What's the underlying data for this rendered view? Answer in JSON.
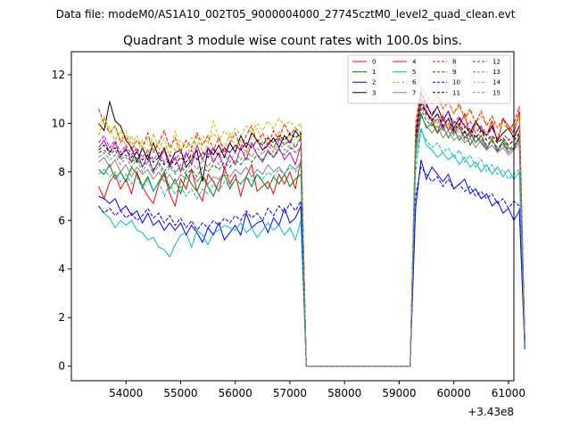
{
  "chart_data": {
    "type": "line",
    "suptitle": "Data file: modeM0/AS1A10_002T05_9000004000_27745cztM0_level2_quad_clean.evt",
    "title": "Quadrant 3 module wise count rates with 100.0s bins.",
    "xlabel": "",
    "ylabel": "",
    "x_offset_label": "+3.43e8",
    "xlim": [
      53000,
      61100
    ],
    "ylim": [
      -0.6,
      12.95
    ],
    "x_ticks": [
      54000,
      55000,
      56000,
      57000,
      58000,
      59000,
      60000,
      61000
    ],
    "x_tick_labels": [
      "54000",
      "55000",
      "56000",
      "57000",
      "58000",
      "59000",
      "60000",
      "61000"
    ],
    "y_ticks": [
      0,
      2,
      4,
      6,
      8,
      10,
      12
    ],
    "y_tick_labels": [
      "0",
      "2",
      "4",
      "6",
      "8",
      "10",
      "12"
    ],
    "x_start": 53500,
    "x_step": 100,
    "gap_segment": {
      "x": [
        57300,
        59200
      ],
      "values": [
        0,
        0
      ]
    },
    "legend_position": "top-right",
    "series": [
      {
        "name": "0",
        "color": "#ff0000",
        "dashed": false,
        "values": [
          7.4,
          6.9,
          7.6,
          7.9,
          7.3,
          7.7,
          7.1,
          8.0,
          7.4,
          7.0,
          6.7,
          7.5,
          7.9,
          7.1,
          6.6,
          7.7,
          7.3,
          8.1,
          7.2,
          6.8,
          7.9,
          7.6,
          7.2,
          8.2,
          7.5,
          7.9,
          7.0,
          7.8,
          8.3,
          7.2,
          7.4,
          7.6,
          7.1,
          7.9,
          7.5,
          8.0,
          7.3,
          8.5,
          0.0
        ],
        "post_values": [
          9.0,
          11.0,
          10.4,
          10.2,
          9.6,
          10.3,
          9.7,
          10.1,
          9.9,
          10.4,
          9.4,
          10.0,
          9.8,
          9.5,
          10.1,
          9.2,
          10.2,
          9.9,
          9.6,
          10.5,
          1.2
        ]
      },
      {
        "name": "1",
        "color": "#008000",
        "dashed": false,
        "values": [
          8.1,
          7.9,
          8.3,
          7.7,
          8.0,
          7.6,
          8.2,
          7.9,
          7.4,
          7.8,
          7.2,
          7.6,
          8.0,
          7.3,
          7.7,
          7.1,
          7.9,
          7.5,
          7.2,
          7.8,
          7.4,
          7.0,
          7.6,
          7.9,
          7.3,
          7.7,
          7.5,
          7.8,
          7.4,
          7.9,
          7.6,
          7.3,
          7.8,
          7.5,
          7.9,
          7.4,
          7.7,
          7.9,
          0.0
        ],
        "post_values": [
          8.8,
          10.4,
          9.8,
          10.0,
          9.6,
          9.9,
          9.4,
          9.8,
          9.3,
          9.7,
          9.1,
          9.5,
          9.2,
          8.9,
          9.4,
          8.8,
          9.3,
          9.0,
          8.9,
          9.5,
          1.0
        ]
      },
      {
        "name": "2",
        "color": "#0000ff",
        "dashed": false,
        "values": [
          7.0,
          6.9,
          6.7,
          6.9,
          6.4,
          6.6,
          6.2,
          6.4,
          5.9,
          6.3,
          5.8,
          6.0,
          5.6,
          5.9,
          5.6,
          5.9,
          5.4,
          5.8,
          5.5,
          5.1,
          5.7,
          5.4,
          5.9,
          5.2,
          5.5,
          5.8,
          5.4,
          6.3,
          5.7,
          5.9,
          6.0,
          5.5,
          6.1,
          5.8,
          6.5,
          5.9,
          6.1,
          6.6,
          0.0
        ],
        "post_values": [
          6.5,
          8.5,
          7.7,
          8.2,
          7.9,
          7.6,
          7.9,
          7.3,
          7.5,
          7.7,
          7.1,
          7.3,
          6.9,
          7.1,
          6.6,
          6.8,
          6.3,
          6.5,
          6.0,
          6.4,
          0.7
        ]
      },
      {
        "name": "3",
        "color": "#000000",
        "dashed": false,
        "values": [
          10.0,
          9.7,
          10.9,
          10.1,
          9.9,
          9.3,
          9.0,
          8.4,
          9.0,
          8.5,
          9.2,
          8.6,
          9.0,
          8.3,
          8.8,
          8.9,
          8.2,
          8.5,
          8.9,
          7.6,
          9.0,
          8.7,
          9.1,
          8.6,
          9.2,
          8.8,
          9.5,
          9.0,
          9.6,
          9.3,
          8.9,
          9.1,
          9.4,
          9.0,
          9.5,
          9.2,
          9.7,
          9.4,
          0.0
        ],
        "post_values": [
          9.5,
          11.3,
          10.8,
          10.3,
          10.7,
          10.1,
          10.5,
          9.8,
          10.2,
          9.9,
          9.6,
          10.1,
          9.7,
          9.5,
          9.9,
          9.3,
          9.6,
          9.8,
          9.4,
          9.9,
          1.1
        ]
      },
      {
        "name": "4",
        "color": "#bf00bf",
        "dashed": false,
        "values": [
          9.0,
          9.3,
          8.8,
          9.2,
          8.6,
          9.0,
          8.4,
          8.9,
          8.2,
          8.7,
          8.0,
          8.5,
          8.9,
          8.2,
          8.6,
          8.0,
          8.8,
          8.3,
          9.1,
          8.5,
          9.0,
          8.4,
          8.8,
          8.1,
          8.7,
          8.3,
          9.0,
          8.5,
          9.2,
          8.7,
          8.4,
          8.9,
          8.6,
          9.0,
          8.5,
          8.8,
          8.3,
          9.1,
          0.0
        ],
        "post_values": [
          9.2,
          10.9,
          10.5,
          10.1,
          10.4,
          9.8,
          10.2,
          9.6,
          9.9,
          9.4,
          9.7,
          9.2,
          9.5,
          9.0,
          9.3,
          8.9,
          9.2,
          8.8,
          9.0,
          9.4,
          1.0
        ]
      },
      {
        "name": "5",
        "color": "#00bfbf",
        "dashed": false,
        "values": [
          6.6,
          6.3,
          6.1,
          5.7,
          6.0,
          5.8,
          6.0,
          5.6,
          5.5,
          5.2,
          5.3,
          4.9,
          4.8,
          4.5,
          5.0,
          5.4,
          5.5,
          4.9,
          5.6,
          5.4,
          5.0,
          5.5,
          5.6,
          5.8,
          5.7,
          5.6,
          5.9,
          5.5,
          5.7,
          5.3,
          5.6,
          5.9,
          5.6,
          5.8,
          5.4,
          5.7,
          5.2,
          6.0,
          0.0
        ],
        "post_values": [
          8.5,
          9.8,
          9.1,
          8.9,
          8.6,
          8.8,
          8.5,
          8.7,
          8.3,
          8.6,
          8.2,
          8.4,
          8.0,
          8.3,
          7.9,
          8.2,
          7.8,
          8.1,
          7.7,
          8.0,
          0.9
        ]
      },
      {
        "name": "6",
        "color": "#bfbf00",
        "dashed": true,
        "values": [
          9.5,
          10.2,
          9.8,
          9.3,
          9.7,
          9.0,
          9.5,
          8.8,
          9.3,
          8.7,
          9.6,
          8.9,
          9.4,
          8.6,
          9.7,
          8.9,
          9.3,
          8.5,
          9.5,
          8.8,
          9.1,
          10.1,
          9.4,
          8.9,
          9.6,
          9.0,
          9.3,
          8.7,
          9.4,
          9.8,
          9.2,
          9.5,
          8.9,
          9.7,
          9.1,
          9.6,
          9.0,
          9.6,
          0.0
        ],
        "post_values": [
          9.3,
          11.1,
          10.6,
          10.3,
          10.0,
          10.4,
          9.8,
          10.1,
          9.6,
          10.0,
          9.5,
          9.8,
          9.4,
          9.7,
          9.2,
          9.6,
          9.1,
          9.4,
          9.2,
          9.6,
          1.0
        ]
      },
      {
        "name": "7",
        "color": "#808080",
        "dashed": false,
        "values": [
          8.4,
          8.6,
          8.2,
          8.5,
          8.0,
          8.3,
          7.8,
          8.2,
          7.9,
          8.1,
          7.7,
          8.0,
          7.6,
          7.9,
          7.5,
          7.9,
          7.7,
          8.0,
          7.6,
          7.9,
          7.5,
          7.8,
          7.7,
          8.0,
          7.8,
          8.1,
          7.9,
          8.2,
          7.8,
          8.1,
          7.9,
          8.3,
          8.0,
          8.2,
          7.9,
          8.3,
          8.1,
          8.4,
          0.0
        ],
        "post_values": [
          8.8,
          10.3,
          9.9,
          9.6,
          9.9,
          9.4,
          9.7,
          9.3,
          9.5,
          9.2,
          9.4,
          9.0,
          9.3,
          8.9,
          9.1,
          8.8,
          9.0,
          8.7,
          8.9,
          9.2,
          1.0
        ]
      },
      {
        "name": "8",
        "color": "#ff0000",
        "dashed": true,
        "values": [
          10.6,
          10.0,
          9.6,
          9.9,
          9.2,
          9.5,
          8.9,
          9.3,
          9.0,
          9.6,
          8.8,
          9.2,
          9.7,
          9.0,
          9.4,
          8.8,
          9.3,
          9.0,
          9.6,
          9.1,
          9.5,
          8.9,
          9.4,
          8.8,
          9.2,
          9.6,
          9.0,
          9.5,
          9.9,
          9.2,
          9.6,
          9.1,
          9.7,
          9.3,
          10.0,
          9.5,
          9.8,
          9.6,
          0.0
        ],
        "post_values": [
          9.8,
          11.5,
          11.1,
          10.8,
          11.2,
          10.6,
          10.9,
          10.4,
          10.8,
          10.2,
          10.6,
          10.0,
          10.5,
          9.9,
          10.3,
          9.8,
          10.2,
          9.7,
          10.0,
          10.7,
          1.2
        ]
      },
      {
        "name": "9",
        "color": "#008000",
        "dashed": true,
        "values": [
          8.8,
          8.9,
          8.7,
          8.9,
          8.5,
          8.7,
          8.4,
          8.6,
          8.2,
          8.5,
          8.1,
          8.4,
          8.0,
          8.3,
          8.0,
          8.2,
          7.9,
          8.1,
          7.8,
          8.2,
          8.0,
          8.3,
          8.1,
          8.4,
          8.2,
          8.5,
          8.3,
          8.6,
          8.4,
          8.7,
          8.5,
          8.8,
          8.6,
          8.9,
          8.7,
          9.0,
          8.8,
          9.0,
          0.0
        ],
        "post_values": [
          8.9,
          10.6,
          10.1,
          9.9,
          10.2,
          9.7,
          10.0,
          9.5,
          9.8,
          9.4,
          9.6,
          9.2,
          9.5,
          9.1,
          9.3,
          9.0,
          9.2,
          8.9,
          9.1,
          9.4,
          1.0
        ]
      },
      {
        "name": "10",
        "color": "#0000ff",
        "dashed": true,
        "values": [
          6.6,
          6.3,
          6.5,
          6.2,
          6.4,
          6.1,
          6.3,
          6.0,
          6.2,
          6.5,
          6.1,
          6.3,
          5.9,
          6.2,
          5.8,
          6.1,
          5.7,
          6.0,
          5.6,
          5.9,
          5.7,
          6.0,
          5.8,
          6.1,
          5.9,
          6.2,
          6.0,
          6.4,
          6.1,
          6.3,
          6.0,
          6.5,
          6.2,
          6.6,
          6.3,
          6.7,
          6.4,
          6.8,
          0.0
        ],
        "post_values": [
          7.0,
          8.2,
          7.9,
          7.6,
          7.8,
          7.4,
          7.7,
          7.3,
          7.5,
          7.2,
          7.4,
          7.0,
          7.2,
          6.9,
          7.1,
          6.7,
          6.9,
          6.5,
          6.8,
          6.6,
          0.8
        ]
      },
      {
        "name": "11",
        "color": "#000000",
        "dashed": true,
        "values": [
          8.9,
          9.1,
          8.8,
          9.0,
          8.7,
          8.9,
          8.6,
          8.8,
          8.5,
          8.7,
          8.4,
          8.6,
          8.3,
          8.5,
          8.3,
          8.6,
          8.4,
          8.7,
          8.5,
          8.8,
          8.6,
          8.9,
          8.7,
          9.0,
          8.8,
          9.1,
          8.9,
          9.2,
          9.0,
          9.3,
          9.1,
          9.4,
          9.2,
          9.5,
          9.3,
          9.6,
          9.4,
          9.6,
          0.0
        ],
        "post_values": [
          9.4,
          10.8,
          10.4,
          10.1,
          10.4,
          9.9,
          10.2,
          9.7,
          10.0,
          9.6,
          9.8,
          9.4,
          9.7,
          9.3,
          9.5,
          9.2,
          9.4,
          9.1,
          9.3,
          9.6,
          1.1
        ]
      },
      {
        "name": "12",
        "color": "#bf00bf",
        "dashed": true,
        "values": [
          9.2,
          9.5,
          9.0,
          9.3,
          8.8,
          9.1,
          8.7,
          9.0,
          8.6,
          8.9,
          8.5,
          8.8,
          8.4,
          8.7,
          8.5,
          8.8,
          8.6,
          8.9,
          8.5,
          8.8,
          8.7,
          9.0,
          8.6,
          8.9,
          8.8,
          9.1,
          8.9,
          9.2,
          9.0,
          9.3,
          8.9,
          9.2,
          9.0,
          9.4,
          9.1,
          9.3,
          9.0,
          9.4,
          0.0
        ],
        "post_values": [
          9.6,
          11.2,
          10.7,
          10.4,
          10.7,
          10.1,
          10.5,
          10.0,
          10.3,
          9.8,
          10.1,
          9.6,
          9.9,
          9.5,
          9.8,
          9.4,
          9.6,
          9.3,
          9.5,
          9.9,
          1.1
        ]
      },
      {
        "name": "13",
        "color": "#00bfbf",
        "dashed": true,
        "values": [
          7.9,
          8.1,
          7.8,
          8.0,
          7.6,
          7.9,
          7.5,
          7.8,
          7.3,
          7.7,
          7.2,
          7.6,
          7.0,
          7.5,
          7.1,
          7.4,
          7.0,
          7.3,
          6.9,
          7.3,
          7.1,
          7.5,
          7.2,
          7.6,
          7.4,
          7.7,
          7.5,
          7.8,
          7.6,
          7.9,
          7.7,
          8.0,
          7.8,
          8.1,
          7.9,
          8.2,
          8.0,
          8.2,
          0.0
        ],
        "post_values": [
          8.0,
          9.7,
          9.3,
          9.0,
          9.2,
          8.8,
          9.0,
          8.6,
          8.9,
          8.4,
          8.7,
          8.2,
          8.5,
          8.0,
          8.3,
          7.9,
          8.1,
          7.7,
          7.9,
          8.1,
          0.9
        ]
      },
      {
        "name": "14",
        "color": "#bfbf00",
        "dashed": true,
        "values": [
          9.9,
          10.3,
          9.6,
          9.9,
          9.3,
          9.7,
          9.1,
          9.5,
          9.0,
          9.4,
          8.9,
          9.3,
          8.8,
          9.2,
          8.9,
          9.3,
          9.0,
          9.4,
          9.1,
          9.5,
          9.2,
          9.6,
          9.3,
          9.7,
          9.4,
          9.8,
          9.5,
          9.9,
          9.6,
          10.0,
          9.7,
          10.1,
          9.8,
          10.2,
          9.9,
          10.1,
          9.8,
          10.0,
          0.0
        ],
        "post_values": [
          10.1,
          11.6,
          11.2,
          10.9,
          11.1,
          10.6,
          10.9,
          10.4,
          10.7,
          10.2,
          10.5,
          10.0,
          10.3,
          9.9,
          10.1,
          9.8,
          10.0,
          9.7,
          9.9,
          10.2,
          1.2
        ]
      },
      {
        "name": "15",
        "color": "#808080",
        "dashed": true,
        "values": [
          8.6,
          8.8,
          8.5,
          8.7,
          8.3,
          8.6,
          8.2,
          8.5,
          8.0,
          8.4,
          7.9,
          8.3,
          7.8,
          8.2,
          7.9,
          8.3,
          8.0,
          8.4,
          8.1,
          8.5,
          8.2,
          8.6,
          8.3,
          8.7,
          8.4,
          8.8,
          8.5,
          8.9,
          8.6,
          9.0,
          8.7,
          9.1,
          8.8,
          9.2,
          8.9,
          9.1,
          8.8,
          9.0,
          0.0
        ],
        "post_values": [
          9.1,
          10.7,
          10.3,
          10.0,
          10.2,
          9.7,
          10.0,
          9.5,
          9.8,
          9.3,
          9.6,
          9.2,
          9.4,
          9.0,
          9.3,
          8.9,
          9.1,
          8.8,
          9.0,
          9.3,
          1.0
        ]
      }
    ],
    "post_x_start": 59200
  }
}
